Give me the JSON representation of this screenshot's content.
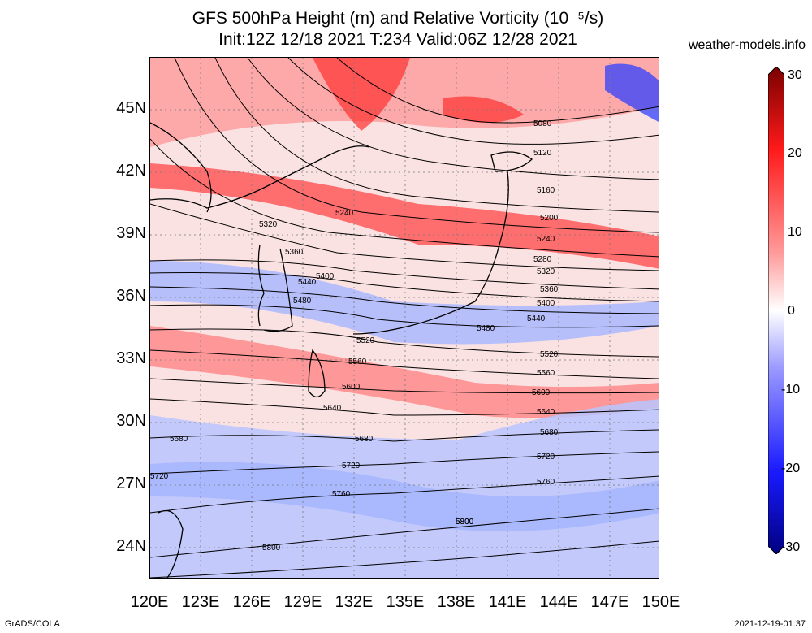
{
  "header": {
    "title_line1": "GFS 500hPa Height (m) and Relative Vorticity (10⁻⁵/s)",
    "title_line2": "Init:12Z 12/18 2021 T:234 Valid:06Z 12/28 2021",
    "credit": "weather-models.info"
  },
  "axes": {
    "lat_labels": [
      "45N",
      "42N",
      "39N",
      "36N",
      "33N",
      "30N",
      "27N",
      "24N"
    ],
    "lon_labels": [
      "120E",
      "123E",
      "126E",
      "129E",
      "132E",
      "135E",
      "138E",
      "141E",
      "144E",
      "147E",
      "150E"
    ]
  },
  "colorbar": {
    "labels": [
      "30",
      "20",
      "10",
      "0",
      "-10",
      "-20",
      "-30"
    ],
    "colors": [
      "#7a0000",
      "#ff1a1a",
      "#ff9999",
      "#ffffff",
      "#9999ff",
      "#1a1aff",
      "#000080"
    ]
  },
  "contours": {
    "labels": [
      "5080",
      "5120",
      "5160",
      "5200",
      "5240",
      "5280",
      "5320",
      "5360",
      "5400",
      "5440",
      "5480",
      "5520",
      "5560",
      "5600",
      "5640",
      "5680",
      "5720",
      "5760",
      "5800"
    ],
    "extra_labels": [
      "5320",
      "5240",
      "5360",
      "5400",
      "5440",
      "5480",
      "5520",
      "5560",
      "5600",
      "5640",
      "5680",
      "5720",
      "5680",
      "5720",
      "5760",
      "5800",
      "5800"
    ]
  },
  "footer": {
    "left": "GrADS/COLA",
    "right": "2021-12-19-01:37"
  }
}
